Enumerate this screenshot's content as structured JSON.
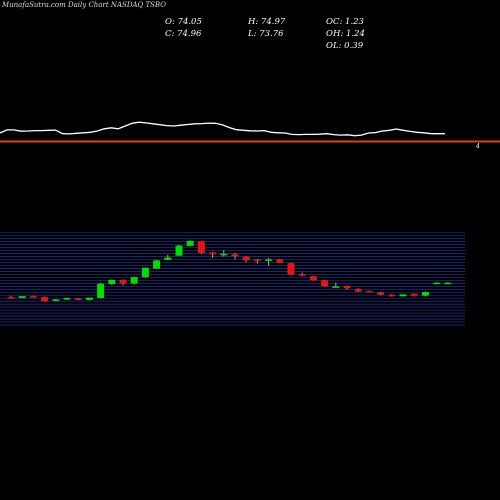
{
  "watermark": "MunafaSutra.com",
  "title": "Daily Chart NASDAQ TSBO",
  "ohlc": {
    "open": "O: 74.05",
    "high": "H: 74.97",
    "oc": "OC: 1.23",
    "close": "C: 74.96",
    "low": "L: 73.76",
    "oh": "OH: 1.24",
    "ol": "OL: 0.39"
  },
  "price_marker": "4",
  "colors": {
    "background": "#000000",
    "up": "#00dd00",
    "down": "#ee1111",
    "grid": "#1e2e8a",
    "separator": "#dd4400",
    "indicator": "#ffffff"
  },
  "chart_data": {
    "type": "candlestick",
    "indicator_line": [
      15.5,
      22.5,
      22.5,
      19.5,
      20,
      21,
      21,
      21.5,
      22,
      14,
      13.5,
      15,
      16,
      17,
      20,
      25,
      27,
      25,
      31,
      37,
      39.5,
      38,
      36,
      34,
      32,
      31,
      33,
      34.5,
      36,
      36.5,
      37.5,
      37,
      33.5,
      27.5,
      23,
      21.5,
      20.5,
      20,
      21,
      17,
      16,
      15.5,
      12.5,
      12,
      12.5,
      12.5,
      13,
      14,
      12,
      11,
      11.5,
      9.5,
      11,
      15.5,
      16.5,
      20,
      21.5,
      24.5,
      21.5,
      19,
      17,
      16,
      14,
      14,
      14
    ],
    "candles": [
      {
        "open": 30,
        "high": 31.5,
        "low": 28.5,
        "close": 29.5,
        "dir": "down"
      },
      {
        "open": 29,
        "high": 31,
        "low": 29,
        "close": 31,
        "dir": "up"
      },
      {
        "open": 31,
        "high": 31.5,
        "low": 29.5,
        "close": 30.5,
        "dir": "down"
      },
      {
        "open": 30,
        "high": 30.5,
        "low": 25,
        "close": 25.5,
        "dir": "down"
      },
      {
        "open": 26,
        "high": 28,
        "low": 25.5,
        "close": 27.5,
        "dir": "up"
      },
      {
        "open": 27.5,
        "high": 29.5,
        "low": 27,
        "close": 29,
        "dir": "up"
      },
      {
        "open": 28.5,
        "high": 29,
        "low": 27,
        "close": 27.5,
        "dir": "down"
      },
      {
        "open": 27,
        "high": 29.5,
        "low": 26.5,
        "close": 29.5,
        "dir": "up"
      },
      {
        "open": 29,
        "high": 45,
        "low": 28.5,
        "close": 44.5,
        "dir": "up"
      },
      {
        "open": 44,
        "high": 49,
        "low": 43,
        "close": 48.5,
        "dir": "up"
      },
      {
        "open": 48.5,
        "high": 49,
        "low": 42.5,
        "close": 44.5,
        "dir": "down"
      },
      {
        "open": 44.5,
        "high": 52,
        "low": 43.5,
        "close": 51.5,
        "dir": "up"
      },
      {
        "open": 51.5,
        "high": 62,
        "low": 51,
        "close": 61.5,
        "dir": "up"
      },
      {
        "open": 60.5,
        "high": 70,
        "low": 60,
        "close": 69.5,
        "dir": "up"
      },
      {
        "open": 70,
        "high": 75.5,
        "low": 69.5,
        "close": 72.5,
        "dir": "up"
      },
      {
        "open": 74.5,
        "high": 86,
        "low": 74,
        "close": 85.5,
        "dir": "up"
      },
      {
        "open": 85,
        "high": 91,
        "low": 84.5,
        "close": 90.5,
        "dir": "up"
      },
      {
        "open": 90,
        "high": 90.5,
        "low": 76.5,
        "close": 77.5,
        "dir": "down"
      },
      {
        "open": 78,
        "high": 78.5,
        "low": 72,
        "close": 76,
        "dir": "down"
      },
      {
        "open": 76.5,
        "high": 80.5,
        "low": 73.5,
        "close": 76,
        "dir": "up"
      },
      {
        "open": 76,
        "high": 77.5,
        "low": 70.5,
        "close": 74,
        "dir": "down"
      },
      {
        "open": 73.5,
        "high": 74,
        "low": 67.5,
        "close": 69.5,
        "dir": "down"
      },
      {
        "open": 70.5,
        "high": 71,
        "low": 66,
        "close": 69.5,
        "dir": "down"
      },
      {
        "open": 70,
        "high": 72,
        "low": 64,
        "close": 70.5,
        "dir": "up"
      },
      {
        "open": 70.5,
        "high": 71,
        "low": 66.5,
        "close": 67,
        "dir": "down"
      },
      {
        "open": 66.5,
        "high": 67,
        "low": 53.5,
        "close": 54,
        "dir": "down"
      },
      {
        "open": 54.5,
        "high": 56.5,
        "low": 52.5,
        "close": 53,
        "dir": "down"
      },
      {
        "open": 52.5,
        "high": 53,
        "low": 47.5,
        "close": 48,
        "dir": "down"
      },
      {
        "open": 48,
        "high": 48.5,
        "low": 41,
        "close": 41.5,
        "dir": "down"
      },
      {
        "open": 41,
        "high": 45.5,
        "low": 40.5,
        "close": 41.5,
        "dir": "up"
      },
      {
        "open": 42,
        "high": 42.5,
        "low": 38,
        "close": 39.5,
        "dir": "down"
      },
      {
        "open": 38.5,
        "high": 39.5,
        "low": 35.5,
        "close": 36,
        "dir": "down"
      },
      {
        "open": 36,
        "high": 37,
        "low": 35,
        "close": 36.5,
        "dir": "down"
      },
      {
        "open": 35,
        "high": 35.5,
        "low": 32,
        "close": 32.5,
        "dir": "down"
      },
      {
        "open": 32.5,
        "high": 33.5,
        "low": 30.5,
        "close": 31,
        "dir": "down"
      },
      {
        "open": 31,
        "high": 33,
        "low": 30.5,
        "close": 33,
        "dir": "up"
      },
      {
        "open": 33.5,
        "high": 34,
        "low": 31,
        "close": 31.5,
        "dir": "down"
      },
      {
        "open": 31.5,
        "high": 36,
        "low": 31,
        "close": 35.5,
        "dir": "up"
      },
      {
        "open": 45.5,
        "high": 46,
        "low": 45,
        "close": 45.5,
        "dir": "up"
      },
      {
        "open": 45.5,
        "high": 46,
        "low": 45,
        "close": 45.5,
        "dir": "up"
      }
    ]
  }
}
